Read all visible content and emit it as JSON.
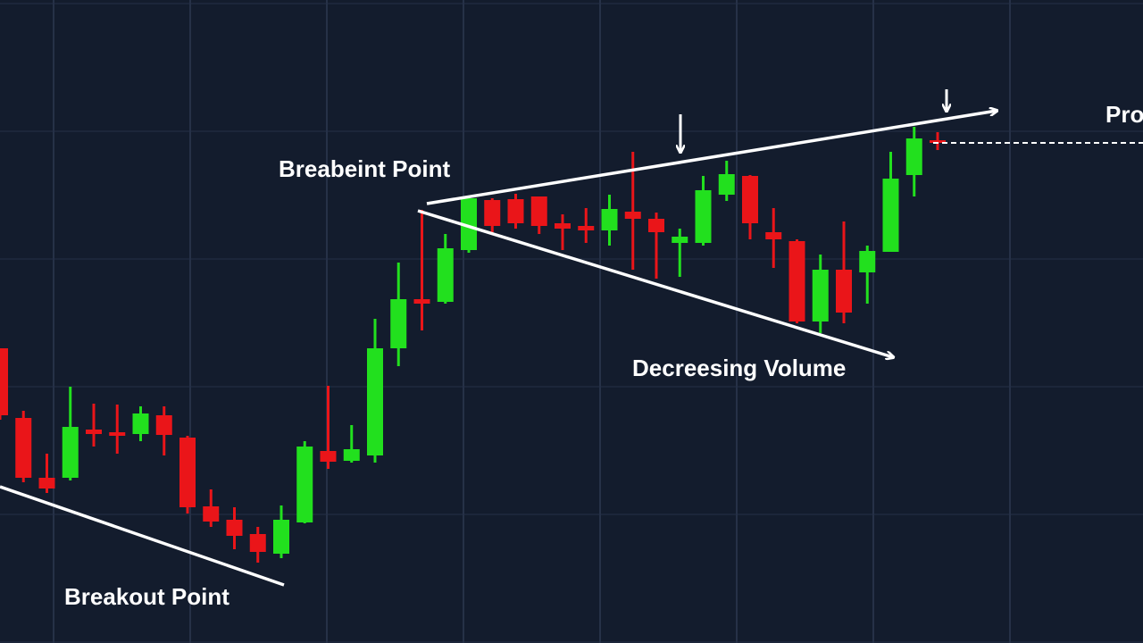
{
  "chart_data": {
    "type": "candlestick",
    "annotations": [
      "Breabeint Point",
      "Decreesing Volume",
      "Breakout Point",
      "Pro"
    ],
    "up_color": "#22e01e",
    "down_color": "#ea1519",
    "grid": true,
    "ylim": [
      0,
      720
    ],
    "open": [
      330,
      252,
      185,
      185,
      239,
      236,
      234,
      255,
      230,
      153,
      138,
      122,
      100,
      135,
      215,
      204,
      210,
      330,
      385,
      382,
      440,
      496,
      497,
      500,
      470,
      467,
      462,
      483,
      475,
      448,
      448,
      502,
      523,
      460,
      450,
      360,
      418,
      415,
      438,
      524,
      563
    ],
    "high": [
      330,
      260,
      212,
      287,
      268,
      267,
      265,
      265,
      232,
      172,
      152,
      130,
      154,
      226,
      288,
      244,
      363,
      426,
      485,
      458,
      500,
      498,
      503,
      500,
      480,
      487,
      502,
      550,
      482,
      464,
      523,
      540,
      524,
      487,
      452,
      435,
      472,
      445,
      550,
      578,
      572
    ],
    "low": [
      250,
      180,
      168,
      182,
      220,
      212,
      226,
      210,
      145,
      130,
      105,
      90,
      95,
      134,
      195,
      202,
      202,
      310,
      350,
      380,
      437,
      460,
      464,
      458,
      440,
      448,
      445,
      418,
      408,
      410,
      445,
      495,
      452,
      420,
      358,
      347,
      358,
      380,
      438,
      500,
      552
    ],
    "close": [
      255,
      185,
      173,
      242,
      234,
      232,
      257,
      233,
      152,
      136,
      120,
      102,
      138,
      220,
      203,
      217,
      330,
      385,
      380,
      442,
      498,
      467,
      470,
      467,
      464,
      462,
      486,
      475,
      460,
      455,
      507,
      525,
      470,
      452,
      360,
      418,
      370,
      439,
      520,
      565,
      561
    ]
  }
}
